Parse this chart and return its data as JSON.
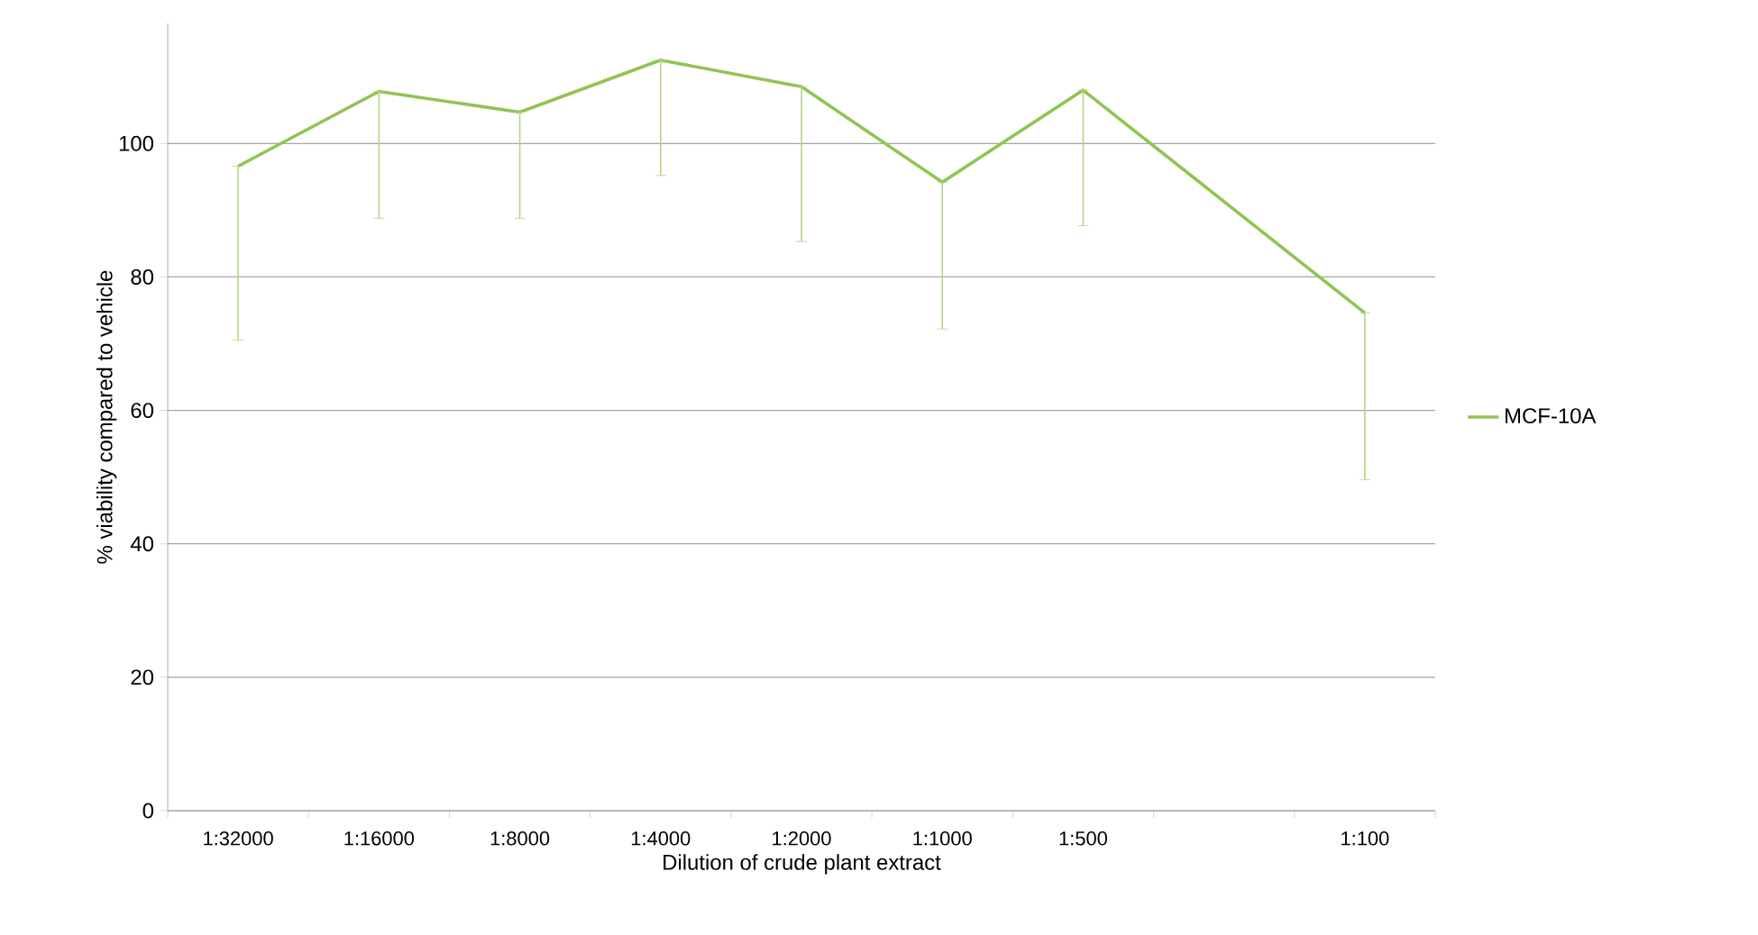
{
  "chart_data": {
    "type": "line",
    "xlabel": "Dilution of crude plant extract",
    "ylabel": "% viability compared to vehicle",
    "categories": [
      "1:32000",
      "1:16000",
      "1:8000",
      "1:4000",
      "1:2000",
      "1:1000",
      "1:500",
      null,
      "1:100"
    ],
    "series": [
      {
        "name": "MCF-10A",
        "color": "#92c353",
        "values": [
          96.6,
          107.8,
          104.7,
          112.5,
          108.5,
          94.2,
          108.0,
          null,
          74.6
        ],
        "errors": [
          [
            70.5,
            96.6
          ],
          [
            88.8,
            107.8
          ],
          [
            88.8,
            104.7
          ],
          [
            95.2,
            112.5
          ],
          [
            85.3,
            108.5
          ],
          [
            72.2,
            94.2
          ],
          [
            87.7,
            108.0
          ],
          null,
          [
            49.6,
            74.6
          ]
        ]
      }
    ],
    "ylim": [
      0,
      118
    ],
    "yticks": [
      0,
      20,
      40,
      60,
      80,
      100
    ],
    "grid": "y",
    "legend": "right",
    "marker": "none",
    "line_style": "solid"
  }
}
